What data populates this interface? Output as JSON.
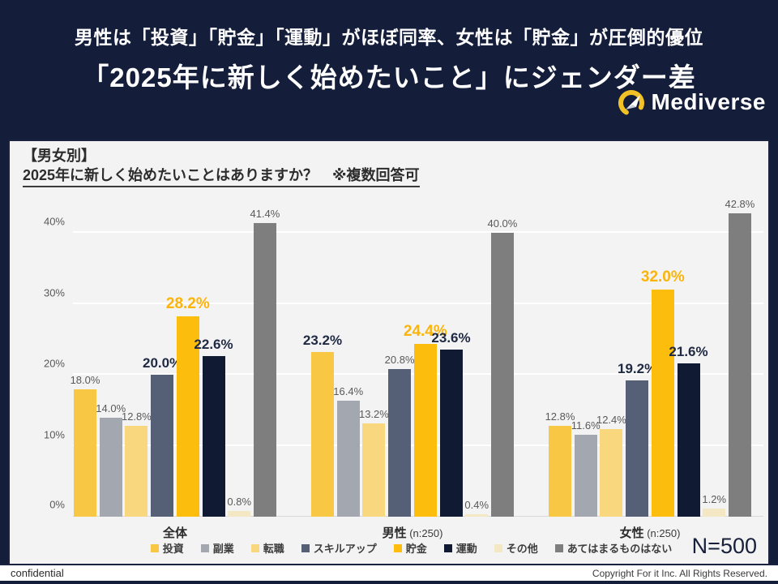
{
  "header": {
    "title_line1": "男性は「投資」「貯金」「運動」がほぼ同率、女性は「貯金」が圧倒的優位",
    "title_line2": "「2025年に新しく始めたいこと」にジェンダー差",
    "logo_text": "Mediverse"
  },
  "panel": {
    "section_label": "【男女別】",
    "question": "2025年に新しく始めたいことはありますか？　※複数回答可"
  },
  "chart_data": {
    "type": "bar",
    "title": "【男女別】2025年に新しく始めたいことはありますか？ ※複数回答可",
    "xlabel": "",
    "ylabel": "",
    "ylim": [
      0,
      45
    ],
    "yticks": [
      0,
      10,
      20,
      30,
      40
    ],
    "ytick_suffix": "%",
    "grid": true,
    "legend_position": "bottom",
    "value_suffix": "%",
    "categories": [
      "投資",
      "副業",
      "転職",
      "スキルアップ",
      "貯金",
      "運動",
      "その他",
      "あてはまるものはない"
    ],
    "colors": [
      "#f8c845",
      "#a2a7b0",
      "#f8d77e",
      "#556077",
      "#fdbd0d",
      "#101b33",
      "#f4e7c3",
      "#7e7e7e"
    ],
    "groups": [
      {
        "label": "全体",
        "n": "",
        "values": [
          18.0,
          14.0,
          12.8,
          20.0,
          28.2,
          22.6,
          0.8,
          41.4
        ]
      },
      {
        "label": "男性",
        "n": "(n:250)",
        "values": [
          23.2,
          16.4,
          13.2,
          20.8,
          24.4,
          23.6,
          0.4,
          40.0
        ]
      },
      {
        "label": "女性",
        "n": "(n:250)",
        "values": [
          12.8,
          11.6,
          12.4,
          19.2,
          32.0,
          21.6,
          1.2,
          42.8
        ]
      }
    ],
    "label_styles": [
      [
        "plain",
        "plain",
        "plain",
        "dark",
        "gold",
        "dark",
        "plain",
        "plain"
      ],
      [
        "dark",
        "plain",
        "plain",
        "plain",
        "gold",
        "dark",
        "plain",
        "plain"
      ],
      [
        "plain",
        "plain",
        "plain",
        "dark",
        "gold",
        "dark",
        "plain",
        "plain"
      ]
    ],
    "n_total": "N=500"
  },
  "footer": {
    "left": "confidential",
    "right": "Copyright For it Inc. All Rights Reserved."
  }
}
